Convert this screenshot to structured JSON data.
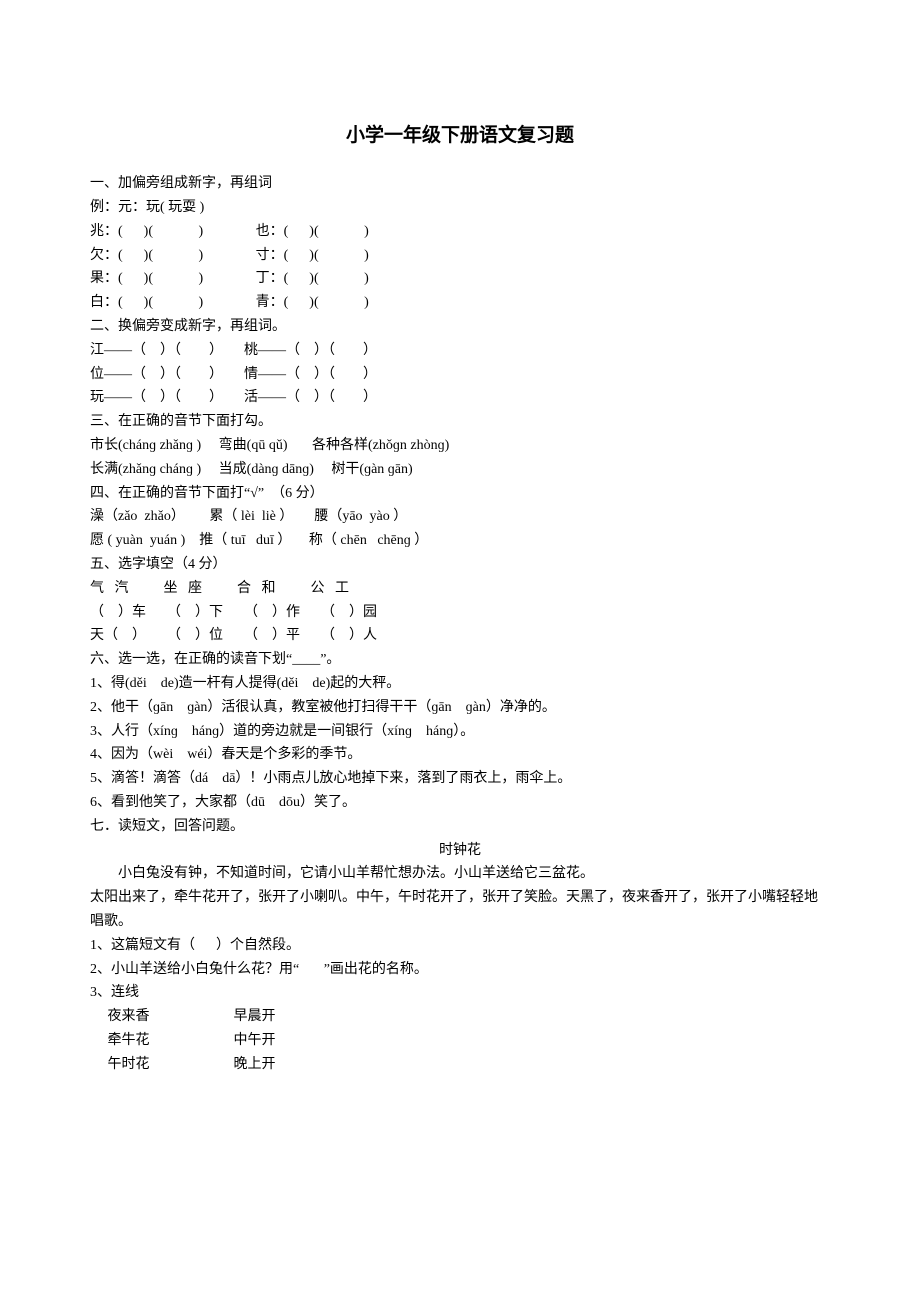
{
  "title": "小学一年级下册语文复习题",
  "sections": {
    "s1": {
      "heading": "一、加偏旁组成新字，再组词",
      "example": "例：元：玩( 玩耍 )",
      "rows": [
        "兆：(      )(             )               也：(      )(             )",
        "欠：(      )(             )               寸：(      )(             )",
        "果：(      )(             )               丁：(      )(             )",
        "白：(      )(             )               青：(      )(             )"
      ]
    },
    "s2": {
      "heading": "二、换偏旁变成新字，再组词。",
      "rows": [
        "江——（    ）（        ）      桃——（    ）（        ）",
        "位——（    ）（        ）      情——（    ）（        ）",
        "玩——（    ）（        ）      活——（    ）（        ）"
      ]
    },
    "s3": {
      "heading": "三、在正确的音节下面打勾。",
      "rows": [
        "市长(chánɡ zhǎnɡ )     弯曲(qū qǔ)       各种各样(zhǒɡn zhònɡ)",
        "长满(zhǎnɡ chánɡ )     当成(dànɡ dānɡ)     树干(ɡàn ɡān)"
      ]
    },
    "s4": {
      "heading": "四、在正确的音节下面打“√”  （6 分）",
      "rows": [
        "澡（zǎo  zhǎo）       累（ lèi  liè ）      腰（yāo  yào ）",
        "愿 ( yuàn  yuán )    推（ tuī   duī ）     称（ chēn   chēnɡ ）"
      ]
    },
    "s5": {
      "heading": "五、选字填空（4 分）",
      "rows": [
        "气   汽          坐   座          合   和          公   工",
        "（    ）车      （    ）下      （    ）作      （    ）园",
        "天（    ）      （    ）位      （    ）平      （    ）人"
      ]
    },
    "s6": {
      "heading": "六、选一选，在正确的读音下划“____”。",
      "items": [
        "1、得(děi    de)造一杆有人提得(děi    de)起的大秤。",
        "2、他干（ɡān    ɡàn）活很认真，教室被他打扫得干干（ɡān    ɡàn）净净的。",
        "3、人行（xínɡ    hánɡ）道的旁边就是一间银行（xínɡ    hánɡ）。",
        "4、因为（wèi    wéi）春天是个多彩的季节。",
        "5、滴答！滴答（dá    dā）！小雨点儿放心地掉下来，落到了雨衣上，雨伞上。",
        "6、看到他笑了，大家都（dū    dōu）笑了。"
      ]
    },
    "s7": {
      "heading": "七．读短文，回答问题。",
      "story_title": "时钟花",
      "story_p1": "小白兔没有钟，不知道时间，它请小山羊帮忙想办法。小山羊送给它三盆花。",
      "story_p2": "太阳出来了，牵牛花开了，张开了小喇叭。中午，午时花开了，张开了笑脸。天黑了，夜来香开了，张开了小嘴轻轻地唱歌。",
      "q1": "1、这篇短文有（      ）个自然段。",
      "q2": "2、小山羊送给小白兔什么花？用“       ”画出花的名称。",
      "q3": "3、连线",
      "match": [
        "     夜来香                        早晨开",
        "     牵牛花                        中午开",
        "     午时花                        晚上开"
      ]
    }
  }
}
